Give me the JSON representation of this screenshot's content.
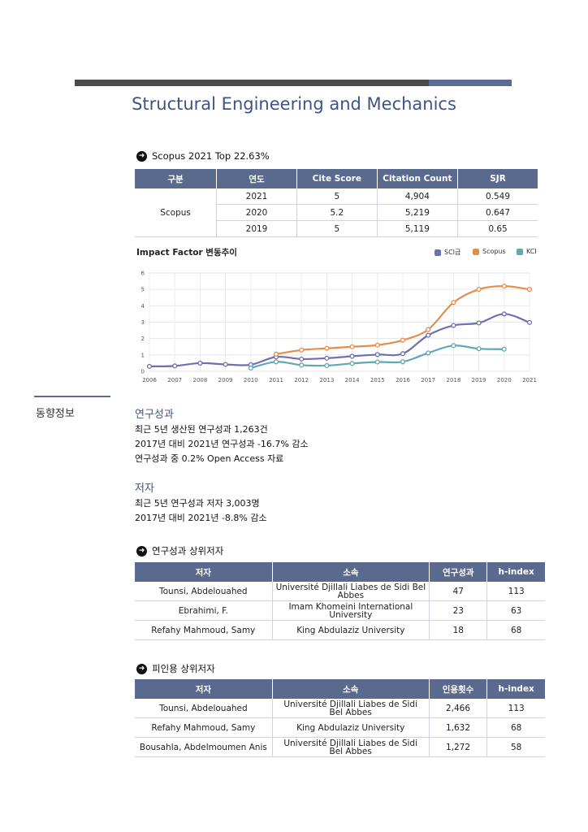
{
  "title": "Structural Engineering and Mechanics",
  "scopus_section": {
    "heading": "Scopus 2021 Top 22.63%",
    "headers": [
      "구분",
      "연도",
      "Cite Score",
      "Citation Count",
      "SJR"
    ],
    "group": "Scopus",
    "rows": [
      {
        "year": "2021",
        "cite": "5",
        "count": "4,904",
        "sjr": "0.549"
      },
      {
        "year": "2020",
        "cite": "5.2",
        "count": "5,219",
        "sjr": "0.647"
      },
      {
        "year": "2019",
        "cite": "5",
        "count": "5,119",
        "sjr": "0.65"
      }
    ]
  },
  "chart_data": {
    "type": "line",
    "title": "Impact Factor 변동추이",
    "x": [
      "2006",
      "2007",
      "2008",
      "2009",
      "2010",
      "2011",
      "2012",
      "2013",
      "2014",
      "2015",
      "2016",
      "2017",
      "2018",
      "2019",
      "2020",
      "2021"
    ],
    "ylim": [
      0,
      6
    ],
    "yticks": [
      "0",
      "1",
      "2",
      "3",
      "4",
      "5",
      "6"
    ],
    "grid": true,
    "legend_position": "top-right",
    "series": [
      {
        "name": "SCI급",
        "color": "#6f6fb0",
        "values": [
          0.3,
          0.33,
          0.5,
          0.42,
          0.4,
          0.88,
          0.75,
          0.8,
          0.92,
          1.02,
          1.08,
          2.2,
          2.8,
          2.95,
          3.5,
          2.98
        ]
      },
      {
        "name": "Scopus",
        "color": "#e58d50",
        "values": [
          null,
          null,
          null,
          null,
          null,
          1.05,
          1.3,
          1.4,
          1.5,
          1.6,
          1.9,
          2.55,
          4.2,
          5.0,
          5.2,
          5.0
        ]
      },
      {
        "name": "KCI",
        "color": "#5fa8b3",
        "values": [
          null,
          null,
          null,
          null,
          0.2,
          0.58,
          0.38,
          0.35,
          0.48,
          0.57,
          0.58,
          1.12,
          1.57,
          1.38,
          1.35,
          null
        ]
      }
    ]
  },
  "sidebar_label": "동향정보",
  "research": {
    "heading": "연구성과",
    "lines": [
      "최근 5년 생산된 연구성과 1,263건",
      "2017년 대비 2021년 연구성과 -16.7% 감소",
      "연구성과 중 0.2% Open Access 자료"
    ]
  },
  "authors": {
    "heading": "저자",
    "lines": [
      "최근 5년 연구성과 저자 3,003명",
      "2017년 대비 2021년 -8.8% 감소"
    ]
  },
  "top_authors": {
    "heading": "연구성과 상위저자",
    "headers": [
      "저자",
      "소속",
      "연구성과",
      "h-index"
    ],
    "rows": [
      {
        "name": "Tounsi, Abdelouahed",
        "aff": "Université Djillali Liabes de Sidi Bel Abbes",
        "n": "47",
        "h": "113"
      },
      {
        "name": "Ebrahimi, F.",
        "aff": "Imam Khomeini International University",
        "n": "23",
        "h": "63"
      },
      {
        "name": "Refahy Mahmoud, Samy",
        "aff": "King Abdulaziz University",
        "n": "18",
        "h": "68"
      }
    ]
  },
  "top_cited": {
    "heading": "피인용 상위저자",
    "headers": [
      "저자",
      "소속",
      "인용횟수",
      "h-index"
    ],
    "rows": [
      {
        "name": "Tounsi, Abdelouahed",
        "aff": "Université Djillali Liabes de Sidi Bel Abbes",
        "n": "2,466",
        "h": "113"
      },
      {
        "name": "Refahy Mahmoud, Samy",
        "aff": "King Abdulaziz University",
        "n": "1,632",
        "h": "68"
      },
      {
        "name": "Bousahla, Abdelmoumen Anis",
        "aff": "Université Djillali Liabes de Sidi Bel Abbes",
        "n": "1,272",
        "h": "58"
      }
    ]
  }
}
